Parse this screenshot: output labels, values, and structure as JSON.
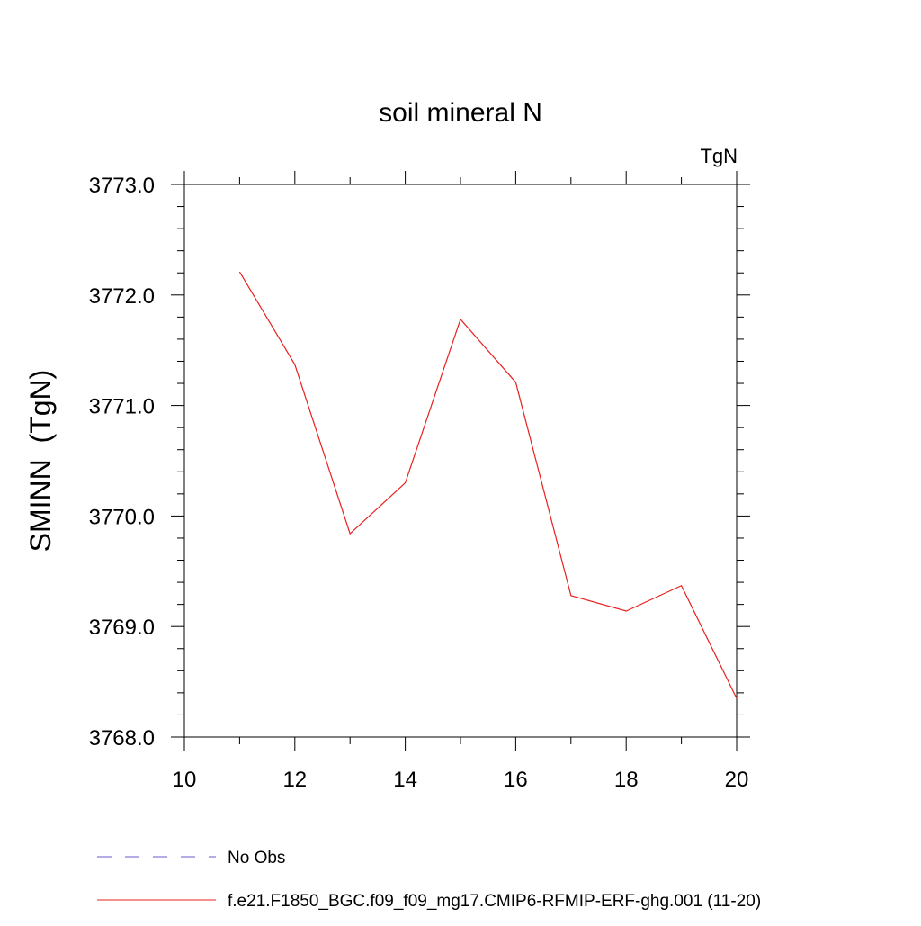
{
  "chart_data": {
    "type": "line",
    "title": "soil mineral N",
    "units_label": "TgN",
    "xlabel": "",
    "ylabel": "SMINN  (TgN)",
    "xlim": [
      10,
      20
    ],
    "ylim": [
      3768.0,
      3773.0
    ],
    "x_ticks": [
      10,
      12,
      14,
      16,
      18,
      20
    ],
    "x_tick_labels": [
      "10",
      "12",
      "14",
      "16",
      "18",
      "20"
    ],
    "y_ticks": [
      3768.0,
      3769.0,
      3770.0,
      3771.0,
      3772.0,
      3773.0
    ],
    "y_tick_labels": [
      "3768.0",
      "3769.0",
      "3770.0",
      "3771.0",
      "3772.0",
      "3773.0"
    ],
    "grid": false,
    "series": [
      {
        "name": "f.e21.F1850_BGC.f09_f09_mg17.CMIP6-RFMIP-ERF-ghg.001 (11-20)",
        "color": "#e8201e",
        "style": "solid",
        "x": [
          11,
          12,
          13,
          14,
          15,
          16,
          17,
          18,
          19,
          20
        ],
        "y": [
          3772.21,
          3771.37,
          3769.84,
          3770.3,
          3771.78,
          3771.21,
          3769.28,
          3769.14,
          3769.37,
          3768.35
        ]
      }
    ],
    "legend": {
      "placement": "bottom",
      "entries": [
        {
          "label": "No Obs",
          "color": "#6a5acd",
          "style": "dashed"
        },
        {
          "label": "f.e21.F1850_BGC.f09_f09_mg17.CMIP6-RFMIP-ERF-ghg.001 (11-20)",
          "color": "#e8201e",
          "style": "solid"
        }
      ]
    }
  }
}
